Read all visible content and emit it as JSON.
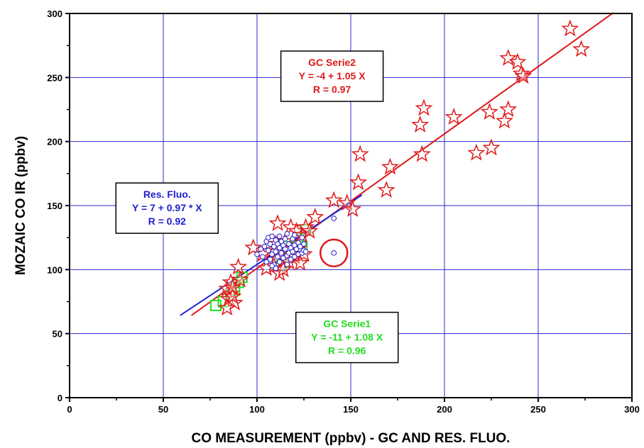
{
  "chart_data": {
    "type": "scatter",
    "xlabel": "CO MEASUREMENT (ppbv) - GC AND RES. FLUO.",
    "ylabel": "MOZAIC CO IR (ppbv)",
    "xlim": [
      0,
      300
    ],
    "ylim": [
      0,
      300
    ],
    "xticks": [
      0,
      50,
      100,
      150,
      200,
      250,
      300
    ],
    "yticks": [
      0,
      50,
      100,
      150,
      200,
      250,
      300
    ],
    "x_tick_labels": [
      "0",
      "50",
      "100",
      "150",
      "200",
      "250",
      "300"
    ],
    "y_tick_labels": [
      "0",
      "50",
      "100",
      "150",
      "200",
      "250",
      "300"
    ],
    "grid": true,
    "series": [
      {
        "marker": "circle",
        "color": "#1f1fd0",
        "points": [
          [
            100,
            112
          ],
          [
            102,
            116
          ],
          [
            103,
            110
          ],
          [
            104,
            118
          ],
          [
            105,
            122
          ],
          [
            106,
            125
          ],
          [
            106,
            115
          ],
          [
            107,
            120
          ],
          [
            107,
            108
          ],
          [
            108,
            126
          ],
          [
            108,
            112
          ],
          [
            109,
            118
          ],
          [
            109,
            104
          ],
          [
            110,
            123
          ],
          [
            110,
            114
          ],
          [
            111,
            110
          ],
          [
            111,
            120
          ],
          [
            112,
            117
          ],
          [
            112,
            106
          ],
          [
            113,
            122
          ],
          [
            113,
            113
          ],
          [
            114,
            109
          ],
          [
            114,
            119
          ],
          [
            115,
            116
          ],
          [
            115,
            124
          ],
          [
            116,
            111
          ],
          [
            116,
            104
          ],
          [
            117,
            120
          ],
          [
            117,
            113
          ],
          [
            118,
            117
          ],
          [
            118,
            108
          ],
          [
            119,
            124
          ],
          [
            119,
            114
          ],
          [
            120,
            119
          ],
          [
            120,
            110
          ],
          [
            121,
            116
          ],
          [
            122,
            121
          ],
          [
            122,
            112
          ],
          [
            123,
            118
          ],
          [
            124,
            113
          ],
          [
            124,
            125
          ],
          [
            125,
            120
          ],
          [
            125,
            115
          ],
          [
            126,
            114
          ],
          [
            116,
            128
          ],
          [
            110,
            101
          ],
          [
            105,
            106
          ],
          [
            112,
            126
          ],
          [
            120,
            127
          ],
          [
            108,
            103
          ],
          [
            141,
            140
          ],
          [
            141,
            113
          ]
        ]
      },
      {
        "marker": "square",
        "color": "#22dd22",
        "points": [
          [
            78,
            72
          ],
          [
            82,
            75
          ],
          [
            86,
            80
          ],
          [
            88,
            84
          ],
          [
            90,
            90
          ],
          [
            92,
            94
          ],
          [
            113,
            103
          ],
          [
            117,
            118
          ],
          [
            122,
            124
          ],
          [
            124,
            118
          ],
          [
            126,
            131
          ]
        ]
      },
      {
        "marker": "star",
        "color": "#e01818",
        "points": [
          [
            267,
            288
          ],
          [
            273,
            272
          ],
          [
            234,
            265
          ],
          [
            239,
            262
          ],
          [
            241,
            253
          ],
          [
            242,
            251
          ],
          [
            234,
            225
          ],
          [
            224,
            223
          ],
          [
            232,
            216
          ],
          [
            189,
            226
          ],
          [
            187,
            213
          ],
          [
            205,
            219
          ],
          [
            188,
            190
          ],
          [
            217,
            191
          ],
          [
            225,
            195
          ],
          [
            155,
            190
          ],
          [
            154,
            168
          ],
          [
            171,
            180
          ],
          [
            169,
            162
          ],
          [
            141,
            154
          ],
          [
            148,
            152
          ],
          [
            151,
            147
          ],
          [
            131,
            141
          ],
          [
            111,
            136
          ],
          [
            98,
            117
          ],
          [
            90,
            102
          ],
          [
            103,
            112
          ],
          [
            108,
            115
          ],
          [
            109,
            103
          ],
          [
            112,
            97
          ],
          [
            115,
            108
          ],
          [
            118,
            133
          ],
          [
            121,
            130
          ],
          [
            124,
            127
          ],
          [
            126,
            133
          ],
          [
            128,
            130
          ],
          [
            120,
            110
          ],
          [
            117,
            106
          ],
          [
            114,
            100
          ],
          [
            105,
            101
          ],
          [
            86,
            90
          ],
          [
            84,
            85
          ],
          [
            86,
            81
          ],
          [
            85,
            77
          ],
          [
            88,
            74
          ],
          [
            87,
            79
          ],
          [
            87,
            86
          ],
          [
            91,
            92
          ],
          [
            84,
            70
          ],
          [
            110,
            120
          ],
          [
            115,
            122
          ],
          [
            122,
            116
          ],
          [
            125,
            112
          ],
          [
            123,
            105
          ]
        ]
      }
    ],
    "fit_lines": [
      {
        "name": "GC Serie2",
        "color": "#e01818",
        "x_range": [
          65,
          290
        ],
        "intercept": -4,
        "slope": 1.05
      },
      {
        "name": "Res. Fluo.",
        "color": "#1f1fd0",
        "x_range": [
          59,
          156
        ],
        "intercept": 7,
        "slope": 0.97
      }
    ],
    "highlight_circle": {
      "x": 141,
      "y": 113,
      "color": "#e01818"
    },
    "annotations": [
      {
        "name": "gc-serie2",
        "color": "#e01818",
        "x": 140,
        "y": 251,
        "lines": [
          "GC Serie2",
          "Y = -4 + 1.05 X",
          "R = 0.97"
        ]
      },
      {
        "name": "res-fluo",
        "color": "#1f1fd0",
        "x": 52,
        "y": 148,
        "lines": [
          "Res. Fluo.",
          "Y = 7 + 0.97 * X",
          "R = 0.92"
        ]
      },
      {
        "name": "gc-serie1",
        "color": "#22dd22",
        "x": 148,
        "y": 47,
        "lines": [
          "GC Serie1",
          "Y = -11 + 1.08 X",
          "R = 0.96"
        ]
      }
    ]
  }
}
